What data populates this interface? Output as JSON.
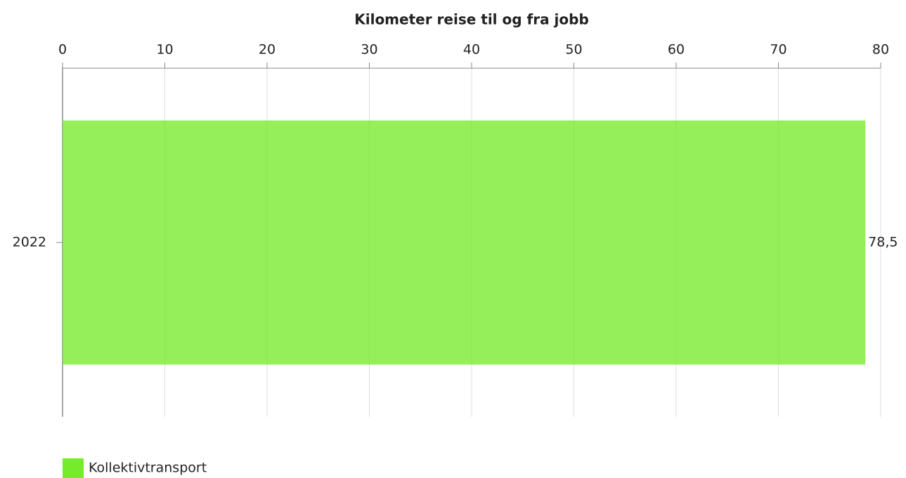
{
  "chart_data": {
    "type": "bar",
    "orientation": "horizontal",
    "title": "Kilometer reise til og fra jobb",
    "categories": [
      "2022"
    ],
    "series": [
      {
        "name": "Kollektivtransport",
        "color": "#76eb2b",
        "values": [
          78.5
        ],
        "value_labels": [
          "78,5"
        ]
      }
    ],
    "xlim": [
      0,
      80
    ],
    "xticks": [
      0,
      10,
      20,
      30,
      40,
      50,
      60,
      70,
      80
    ],
    "grid": true,
    "legend": "bottom-left"
  }
}
